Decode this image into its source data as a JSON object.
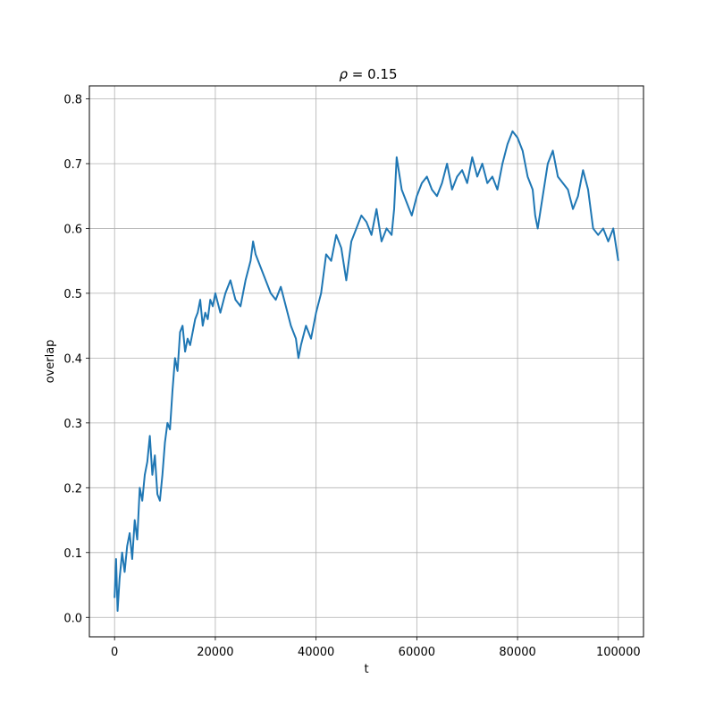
{
  "chart_data": {
    "type": "line",
    "title": "ρ = 0.15",
    "title_parts": {
      "symbol": "ρ",
      "rest": " = 0.15"
    },
    "xlabel": "t",
    "ylabel": "overlap",
    "xlim": [
      -5000,
      105000
    ],
    "ylim": [
      -0.03,
      0.82
    ],
    "xticks": [
      0,
      20000,
      40000,
      60000,
      80000,
      100000
    ],
    "xtick_labels": [
      "0",
      "20000",
      "40000",
      "60000",
      "80000",
      "100000"
    ],
    "yticks": [
      0.0,
      0.1,
      0.2,
      0.3,
      0.4,
      0.5,
      0.6,
      0.7,
      0.8
    ],
    "ytick_labels": [
      "0.0",
      "0.1",
      "0.2",
      "0.3",
      "0.4",
      "0.5",
      "0.6",
      "0.7",
      "0.8"
    ],
    "grid": true,
    "legend": false,
    "series": [
      {
        "color": "#1f77b4",
        "x": [
          0,
          300,
          600,
          1000,
          1500,
          2000,
          2500,
          3000,
          3500,
          4000,
          4500,
          5000,
          5500,
          6000,
          6500,
          7000,
          7500,
          8000,
          8500,
          9000,
          9500,
          10000,
          10500,
          11000,
          11500,
          12000,
          12500,
          13000,
          13500,
          14000,
          14500,
          15000,
          15500,
          16000,
          16500,
          17000,
          17500,
          18000,
          18500,
          19000,
          19500,
          20000,
          21000,
          22000,
          23000,
          24000,
          25000,
          26000,
          27000,
          27500,
          28000,
          29000,
          30000,
          31000,
          32000,
          33000,
          34000,
          35000,
          36000,
          36500,
          37000,
          38000,
          39000,
          40000,
          41000,
          42000,
          43000,
          44000,
          45000,
          46000,
          47000,
          48000,
          49000,
          50000,
          51000,
          52000,
          53000,
          54000,
          55000,
          55500,
          56000,
          57000,
          58000,
          59000,
          60000,
          61000,
          62000,
          63000,
          64000,
          65000,
          66000,
          67000,
          68000,
          69000,
          70000,
          71000,
          72000,
          73000,
          74000,
          75000,
          76000,
          77000,
          78000,
          79000,
          80000,
          81000,
          82000,
          83000,
          83500,
          84000,
          85000,
          86000,
          87000,
          88000,
          89000,
          90000,
          91000,
          92000,
          93000,
          94000,
          95000,
          96000,
          97000,
          98000,
          99000,
          100000
        ],
        "y": [
          0.03,
          0.09,
          0.01,
          0.06,
          0.1,
          0.07,
          0.11,
          0.13,
          0.09,
          0.15,
          0.12,
          0.2,
          0.18,
          0.22,
          0.24,
          0.28,
          0.22,
          0.25,
          0.19,
          0.18,
          0.22,
          0.27,
          0.3,
          0.29,
          0.35,
          0.4,
          0.38,
          0.44,
          0.45,
          0.41,
          0.43,
          0.42,
          0.44,
          0.46,
          0.47,
          0.49,
          0.45,
          0.47,
          0.46,
          0.49,
          0.48,
          0.5,
          0.47,
          0.5,
          0.52,
          0.49,
          0.48,
          0.52,
          0.55,
          0.58,
          0.56,
          0.54,
          0.52,
          0.5,
          0.49,
          0.51,
          0.48,
          0.45,
          0.43,
          0.4,
          0.42,
          0.45,
          0.43,
          0.47,
          0.5,
          0.56,
          0.55,
          0.59,
          0.57,
          0.52,
          0.58,
          0.6,
          0.62,
          0.61,
          0.59,
          0.63,
          0.58,
          0.6,
          0.59,
          0.63,
          0.71,
          0.66,
          0.64,
          0.62,
          0.65,
          0.67,
          0.68,
          0.66,
          0.65,
          0.67,
          0.7,
          0.66,
          0.68,
          0.69,
          0.67,
          0.71,
          0.68,
          0.7,
          0.67,
          0.68,
          0.66,
          0.7,
          0.73,
          0.75,
          0.74,
          0.72,
          0.68,
          0.66,
          0.62,
          0.6,
          0.65,
          0.7,
          0.72,
          0.68,
          0.67,
          0.66,
          0.63,
          0.65,
          0.69,
          0.66,
          0.6,
          0.59,
          0.6,
          0.58,
          0.6,
          0.55
        ]
      }
    ]
  }
}
